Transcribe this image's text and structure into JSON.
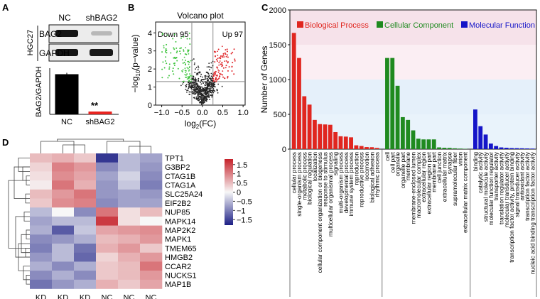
{
  "panel_letters": {
    "a": "A",
    "b": "B",
    "c": "C",
    "d": "D"
  },
  "chart_data": [
    {
      "panel": "A",
      "type": "bar",
      "blot": {
        "lanes": [
          "NC",
          "shBAG2"
        ],
        "cell_line": "HGC27",
        "rows": [
          "BAG2",
          "GAPDH"
        ]
      },
      "categories": [
        "NC",
        "shBAG2"
      ],
      "values": [
        1.0,
        0.07
      ],
      "colors": [
        "#000000",
        "#e8231f"
      ],
      "significance": "**",
      "ylabel": "BAG2/GAPDH",
      "ylim": [
        0,
        1.15
      ]
    },
    {
      "panel": "B",
      "type": "scatter",
      "title": "Volcano plot",
      "down_label": "Down 95",
      "up_label": "Up 97",
      "xlabel_base": "log",
      "xlabel_sub": "2",
      "xlabel_rest": "(FC)",
      "ylabel_pre": "−log",
      "ylabel_sub": "10",
      "ylabel_rest": "(p−value)",
      "xticks": [
        "−1.0",
        "−0.5",
        "0.0",
        "0.5",
        "1.0"
      ],
      "xtick_values": [
        -1.0,
        -0.5,
        0.0,
        0.5,
        1.0
      ],
      "yticks": [
        "0",
        "1",
        "2",
        "3",
        "4"
      ],
      "ytick_values": [
        0,
        1,
        2,
        3,
        4
      ],
      "xlim": [
        -1.15,
        1.05
      ],
      "ylim": [
        0,
        4.6
      ],
      "threshold_x": [
        -0.26,
        0.26
      ],
      "threshold_y": 1.3,
      "colors": {
        "down": "#3ec43e",
        "up": "#e0262a",
        "ns": "#222222",
        "line": "#8a8a8a"
      }
    },
    {
      "panel": "C",
      "type": "bar",
      "ylabel": "Number of Genes",
      "yticks": [
        "0",
        "500",
        "1000",
        "1500",
        "2000"
      ],
      "ytick_values": [
        0,
        500,
        1000,
        1500,
        2000
      ],
      "ylim": [
        0,
        2000
      ],
      "bands": [
        {
          "from": 1500,
          "to": 2000,
          "color": "#f6e2ea"
        },
        {
          "from": 1000,
          "to": 1500,
          "color": "#fbeef3"
        },
        {
          "from": 500,
          "to": 1000,
          "color": "#e5f0fa"
        },
        {
          "from": 0,
          "to": 500,
          "color": "#e9f3fb"
        }
      ],
      "groups": [
        {
          "name": "Biological Process",
          "color": "#e0261f",
          "categories": [
            "cellular process",
            "single-organism process",
            "metabolic process",
            "biological regulation",
            "localization",
            "cellular component organization or biogenesis",
            "response to stimulus",
            "multicellular organismal process",
            "signaling",
            "multi-organism process",
            "developmental process",
            "immune system process",
            "reproduction",
            "reproductive process",
            "locomotion",
            "biological adhesion",
            "rhythmic process"
          ],
          "values": [
            1670,
            1310,
            760,
            640,
            420,
            360,
            355,
            350,
            245,
            185,
            180,
            170,
            55,
            45,
            30,
            28,
            18
          ]
        },
        {
          "name": "Cellular Component",
          "color": "#1f8a1f",
          "categories": [
            "cell",
            "cell part",
            "organelle",
            "organelle part",
            "membrane",
            "membrane-enclosed lumen",
            "macromolecular complex",
            "extracellular region",
            "extracellular region part",
            "membrane part",
            "cell junction",
            "extracellular matrix",
            "synapse",
            "supramolecular fiber",
            "virion",
            "extracellular matrix component"
          ],
          "values": [
            1310,
            1310,
            910,
            460,
            420,
            270,
            150,
            140,
            140,
            140,
            25,
            20,
            18,
            12,
            8,
            5
          ]
        },
        {
          "name": "Molecular Function",
          "color": "#1515c8",
          "categories": [
            "binding",
            "catalytic activity",
            "structural molecule activity",
            "molecular function regulator",
            "transporter activity",
            "translation regulator activity",
            "molecular transducer activity",
            "transcription factor activity, protein binding",
            "signal transducer activity",
            "antioxidant activity",
            "transcription factor activity",
            "nucleic acid binding transcription factor activity"
          ],
          "values": [
            570,
            330,
            210,
            80,
            45,
            25,
            20,
            15,
            14,
            12,
            10,
            8
          ]
        }
      ]
    },
    {
      "panel": "D",
      "type": "heatmap",
      "rows": [
        "TPT1",
        "G3BP2",
        "CTAG1B",
        "CTAG1A",
        "SLC25A24",
        "EIF2B2",
        "NUP85",
        "MAPK14",
        "MAP2K2",
        "MAPK1",
        "TMEM65",
        "HMGB2",
        "CCAR2",
        "NUCKS1",
        "MAP1B"
      ],
      "columns": [
        "KD",
        "KD",
        "KD",
        "NC",
        "NC",
        "NC"
      ],
      "values": [
        [
          0.5,
          0.6,
          0.4,
          -1.6,
          -0.5,
          -0.7
        ],
        [
          0.3,
          1.0,
          0.8,
          -0.9,
          -0.5,
          -0.8
        ],
        [
          0.2,
          0.9,
          0.7,
          -0.7,
          -0.3,
          -0.9
        ],
        [
          0.1,
          1.1,
          0.6,
          -0.8,
          -0.4,
          -1.0
        ],
        [
          0.5,
          0.8,
          1.1,
          -0.8,
          -0.7,
          -0.8
        ],
        [
          0.4,
          0.9,
          1.0,
          -0.9,
          -0.7,
          -0.7
        ],
        [
          -0.5,
          0.0,
          -0.9,
          1.1,
          0.2,
          0.5
        ],
        [
          -0.7,
          -0.5,
          -0.5,
          1.6,
          0.2,
          0.0
        ],
        [
          -0.6,
          -1.3,
          -0.4,
          0.7,
          0.8,
          0.9
        ],
        [
          -0.9,
          -0.8,
          -0.6,
          0.5,
          0.6,
          0.8
        ],
        [
          -1.0,
          -0.5,
          -1.1,
          0.6,
          0.8,
          0.4
        ],
        [
          -0.8,
          -0.5,
          -1.2,
          0.3,
          0.6,
          0.8
        ],
        [
          -0.6,
          -0.9,
          -0.6,
          0.4,
          0.5,
          1.1
        ],
        [
          -0.9,
          -0.6,
          -0.9,
          0.4,
          0.5,
          0.8
        ],
        [
          -1.1,
          -0.8,
          -0.6,
          0.6,
          0.4,
          0.7
        ]
      ],
      "legend_ticks": [
        "1.5",
        "1",
        "0.5",
        "0",
        "−0.5",
        "−1",
        "−1.5"
      ],
      "legend_tick_values": [
        1.5,
        1,
        0.5,
        0,
        -0.5,
        -1,
        -1.5
      ],
      "color_scale": {
        "min": -1.8,
        "max": 1.8,
        "low": "#1c1f85",
        "mid": "#f7f7f7",
        "high": "#c6222b"
      }
    }
  ]
}
